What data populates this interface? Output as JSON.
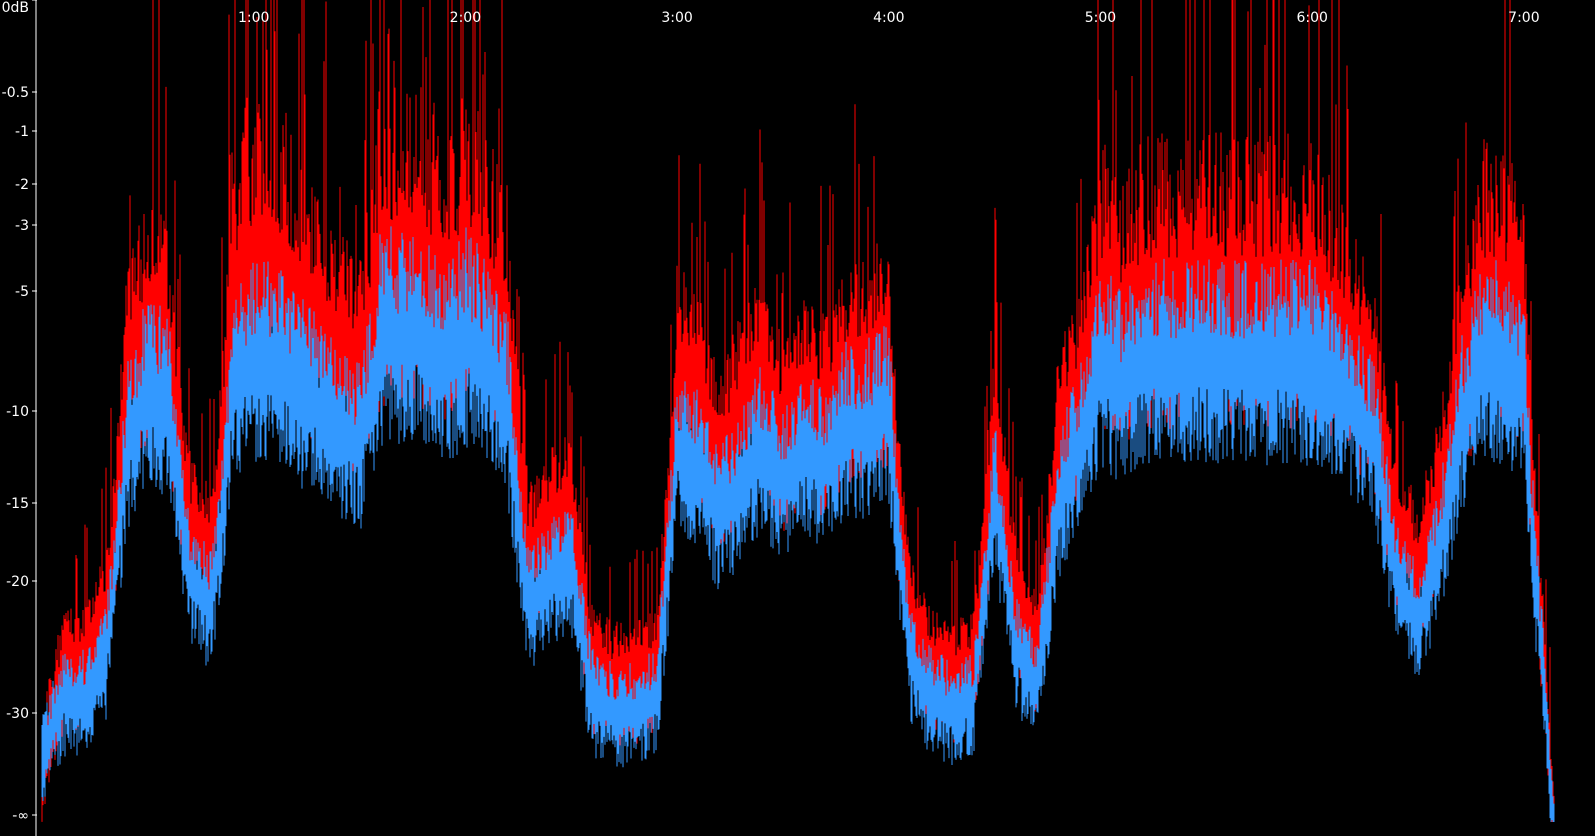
{
  "chart_data": {
    "type": "area",
    "title": "",
    "xlabel": "",
    "ylabel": "",
    "x_unit": "minutes",
    "xlim": [
      0,
      7.15
    ],
    "x_ticks": [
      {
        "value": 1,
        "label": "1:00"
      },
      {
        "value": 2,
        "label": "2:00"
      },
      {
        "value": 3,
        "label": "3:00"
      },
      {
        "value": 4,
        "label": "4:00"
      },
      {
        "value": 5,
        "label": "5:00"
      },
      {
        "value": 6,
        "label": "6:00"
      },
      {
        "value": 7,
        "label": "7:00"
      }
    ],
    "y_ticks": [
      {
        "value": 0,
        "label": "0dB"
      },
      {
        "value": -0.5,
        "label": "-0.5"
      },
      {
        "value": -1,
        "label": "-1"
      },
      {
        "value": -2,
        "label": "-2"
      },
      {
        "value": -3,
        "label": "-3"
      },
      {
        "value": -5,
        "label": "-5"
      },
      {
        "value": -10,
        "label": "-10"
      },
      {
        "value": -15,
        "label": "-15"
      },
      {
        "value": -20,
        "label": "-20"
      },
      {
        "value": -30,
        "label": "-30"
      },
      {
        "value": null,
        "label": "-∞"
      }
    ],
    "colors": {
      "background": "#000000",
      "peak": "#ff0000",
      "rms": "#3399ff",
      "axis": "#ffffff"
    },
    "series": [
      {
        "name": "",
        "role": "peak",
        "x": [
          0.0,
          0.1,
          0.2,
          0.3,
          0.4,
          0.5,
          0.6,
          0.7,
          0.8,
          0.9,
          1.0,
          1.1,
          1.2,
          1.3,
          1.4,
          1.5,
          1.6,
          1.7,
          1.8,
          1.9,
          2.0,
          2.1,
          2.2,
          2.3,
          2.4,
          2.5,
          2.6,
          2.7,
          2.8,
          2.9,
          3.0,
          3.1,
          3.2,
          3.3,
          3.4,
          3.5,
          3.6,
          3.7,
          3.8,
          3.9,
          4.0,
          4.1,
          4.2,
          4.3,
          4.4,
          4.5,
          4.6,
          4.7,
          4.8,
          4.9,
          5.0,
          5.1,
          5.2,
          5.3,
          5.4,
          5.5,
          5.6,
          5.7,
          5.8,
          5.9,
          6.0,
          6.1,
          6.2,
          6.3,
          6.4,
          6.5,
          6.6,
          6.7,
          6.8,
          6.9,
          7.0,
          7.1,
          7.15
        ],
        "values": [
          -30,
          -22,
          -22,
          -18,
          -4,
          -2,
          -3,
          -12,
          -14,
          -1,
          0,
          0,
          -1,
          -2,
          -3,
          -4,
          0,
          0,
          0,
          -1,
          0,
          -1,
          -2,
          -14,
          -12,
          -11,
          -22,
          -23,
          -23,
          -22,
          -4,
          -5,
          -8,
          -6,
          -4,
          -7,
          -5,
          -6,
          -4,
          -4,
          -3,
          -18,
          -22,
          -23,
          -22,
          -6,
          -17,
          -21,
          -7,
          -5,
          -1,
          -2,
          -1,
          -1,
          -1,
          -1,
          -1,
          -1,
          -1,
          -1,
          -1,
          -2,
          -3,
          -5,
          -12,
          -15,
          -10,
          -4,
          -1,
          -1,
          -2,
          -22,
          -40
        ]
      },
      {
        "name": "",
        "role": "rms",
        "x": [
          0.0,
          0.1,
          0.2,
          0.3,
          0.4,
          0.5,
          0.6,
          0.7,
          0.8,
          0.9,
          1.0,
          1.1,
          1.2,
          1.3,
          1.4,
          1.5,
          1.6,
          1.7,
          1.8,
          1.9,
          2.0,
          2.1,
          2.2,
          2.3,
          2.4,
          2.5,
          2.6,
          2.7,
          2.8,
          2.9,
          3.0,
          3.1,
          3.2,
          3.3,
          3.4,
          3.5,
          3.6,
          3.7,
          3.8,
          3.9,
          4.0,
          4.1,
          4.2,
          4.3,
          4.4,
          4.5,
          4.6,
          4.7,
          4.8,
          4.9,
          5.0,
          5.1,
          5.2,
          5.3,
          5.4,
          5.5,
          5.6,
          5.7,
          5.8,
          5.9,
          6.0,
          6.1,
          6.2,
          6.3,
          6.4,
          6.5,
          6.6,
          6.7,
          6.8,
          6.9,
          7.0,
          7.1,
          7.15
        ],
        "values": [
          -30,
          -25,
          -25,
          -22,
          -8,
          -5,
          -6,
          -16,
          -18,
          -5,
          -4,
          -4,
          -5,
          -6,
          -7,
          -8,
          -3,
          -3,
          -3,
          -4,
          -3,
          -4,
          -6,
          -18,
          -16,
          -15,
          -25,
          -26,
          -26,
          -25,
          -8,
          -9,
          -12,
          -10,
          -8,
          -10,
          -8,
          -9,
          -7,
          -7,
          -6,
          -22,
          -25,
          -26,
          -25,
          -10,
          -21,
          -24,
          -11,
          -8,
          -4,
          -5,
          -4,
          -4,
          -4,
          -4,
          -4,
          -4,
          -4,
          -4,
          -4,
          -5,
          -6,
          -8,
          -16,
          -19,
          -14,
          -7,
          -4,
          -4,
          -5,
          -25,
          -40
        ]
      }
    ]
  }
}
